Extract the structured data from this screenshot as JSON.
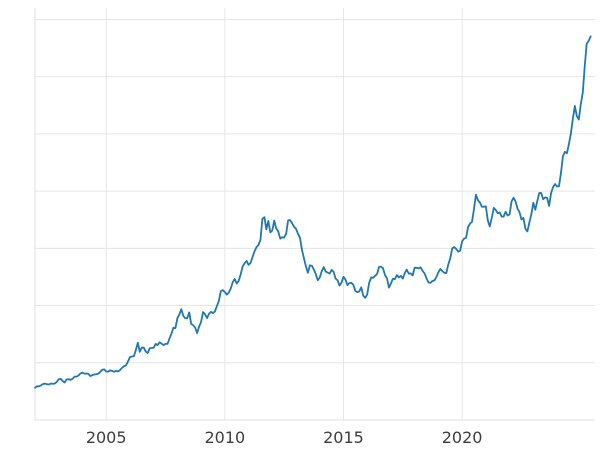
{
  "chart_data": {
    "type": "line",
    "title": "",
    "xlabel": "",
    "ylabel": "",
    "legend": null,
    "grid": true,
    "series": [
      {
        "name": "price",
        "color": "#1f77b4",
        "x_start_year": 2002.0,
        "x_step_years": 0.0833333,
        "values": [
          281,
          295,
          294,
          302,
          314,
          318,
          313,
          310,
          319,
          316,
          319,
          333,
          356,
          359,
          340,
          328,
          355,
          356,
          351,
          360,
          379,
          379,
          389,
          407,
          414,
          405,
          406,
          403,
          384,
          392,
          398,
          400,
          405,
          420,
          439,
          442,
          424,
          423,
          434,
          429,
          421,
          430,
          424,
          437,
          456,
          470,
          476,
          510,
          550,
          555,
          557,
          611,
          675,
          596,
          633,
          632,
          598,
          585,
          627,
          629,
          631,
          665,
          655,
          679,
          667,
          655,
          665,
          665,
          712,
          754,
          806,
          803,
          890,
          922,
          968,
          910,
          889,
          889,
          940,
          839,
          829,
          807,
          760,
          816,
          858,
          943,
          924,
          890,
          928,
          945,
          934,
          949,
          996,
          1043,
          1127,
          1134,
          1118,
          1095,
          1113,
          1149,
          1205,
          1232,
          1193,
          1215,
          1271,
          1342,
          1370,
          1390,
          1356,
          1372,
          1424,
          1473,
          1510,
          1529,
          1573,
          1759,
          1772,
          1666,
          1739,
          1640,
          1656,
          1742,
          1674,
          1650,
          1585,
          1597,
          1594,
          1626,
          1744,
          1747,
          1721,
          1688,
          1671,
          1627,
          1593,
          1487,
          1414,
          1343,
          1286,
          1351,
          1348,
          1316,
          1275,
          1221,
          1244,
          1300,
          1336,
          1298,
          1288,
          1279,
          1311,
          1295,
          1236,
          1222,
          1175,
          1200,
          1251,
          1227,
          1178,
          1197,
          1198,
          1181,
          1128,
          1117,
          1124,
          1159,
          1086,
          1068,
          1097,
          1199,
          1246,
          1242,
          1260,
          1276,
          1337,
          1340,
          1326,
          1266,
          1238,
          1157,
          1192,
          1234,
          1231,
          1266,
          1246,
          1260,
          1236,
          1283,
          1314,
          1279,
          1281,
          1264,
          1331,
          1330,
          1325,
          1334,
          1303,
          1281,
          1238,
          1201,
          1198,
          1215,
          1220,
          1250,
          1291,
          1320,
          1300,
          1286,
          1284,
          1359,
          1413,
          1500,
          1511,
          1495,
          1471,
          1479,
          1561,
          1585,
          1591,
          1686,
          1716,
          1732,
          1843,
          1969,
          1921,
          1900,
          1863,
          1864,
          1867,
          1743,
          1691,
          1767,
          1853,
          1835,
          1807,
          1814,
          1777,
          1777,
          1820,
          1787,
          1797,
          1910,
          1942,
          1911,
          1848,
          1817,
          1753,
          1766,
          1671,
          1648,
          1725,
          1797,
          1898,
          1837,
          1912,
          1983,
          1983,
          1929,
          1945,
          1940,
          1870,
          1983,
          2036,
          2062,
          2040,
          2044,
          2160,
          2307,
          2343,
          2330,
          2411,
          2503,
          2630,
          2744,
          2657,
          2625,
          2757,
          2858,
          3089,
          3288,
          3313,
          3352
        ]
      }
    ],
    "xlim": [
      2002.0,
      2025.6
    ],
    "ylim": [
      0,
      3600
    ],
    "x_ticks": [
      {
        "value": 2005,
        "label": "2005"
      },
      {
        "value": 2010,
        "label": "2010"
      },
      {
        "value": 2015,
        "label": "2015"
      },
      {
        "value": 2020,
        "label": "2020"
      }
    ],
    "grid_y_values": [
      500,
      1000,
      1500,
      2000,
      2500,
      3000,
      3500
    ],
    "style": {
      "background_color": "#ffffff",
      "line_color": "#1f77b4",
      "grid_color": "#e5e5e5",
      "spine_color": "#e0e0e0",
      "tick_label_color": "#3d3d3d",
      "tick_font_size": 16,
      "line_width": 1.8
    }
  }
}
